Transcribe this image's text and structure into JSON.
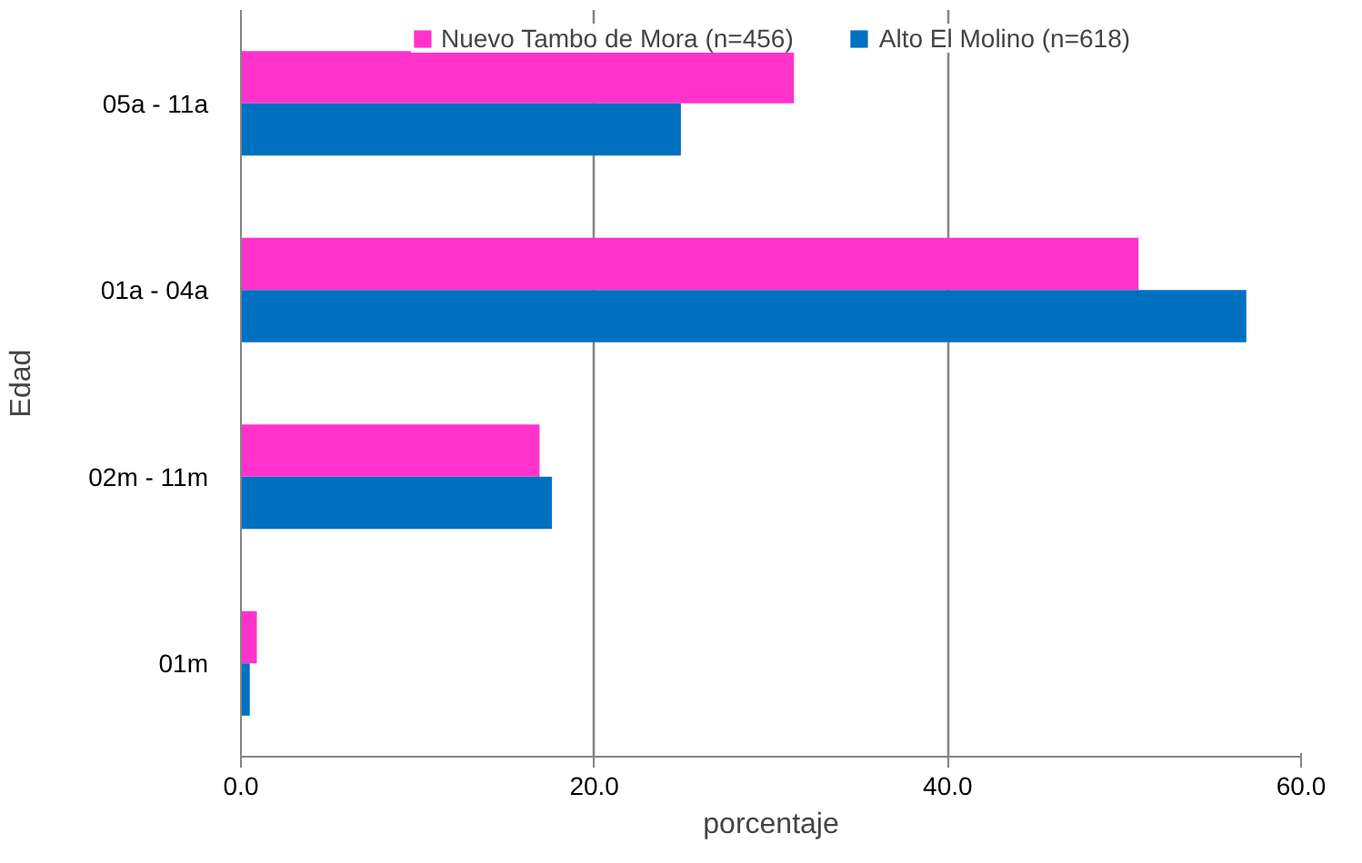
{
  "chart_data": {
    "type": "bar",
    "orientation": "horizontal",
    "xlabel": "porcentaje",
    "ylabel": "Edad",
    "categories": [
      "05a - 11a",
      "01a - 04a",
      "02m - 11m",
      "01m"
    ],
    "series": [
      {
        "name": "Nuevo Tambo de Mora (n=456)",
        "color": "#ff33cc",
        "values": [
          31.3,
          50.8,
          16.9,
          0.9
        ]
      },
      {
        "name": "Alto El Molino (n=618)",
        "color": "#0070c0",
        "values": [
          24.9,
          56.9,
          17.6,
          0.5
        ]
      }
    ],
    "xlim": [
      0,
      60
    ],
    "xticks": [
      {
        "value": 0,
        "label": "0.0"
      },
      {
        "value": 20,
        "label": "20.0"
      },
      {
        "value": 40,
        "label": "40.0"
      },
      {
        "value": 60,
        "label": "60.0"
      }
    ],
    "grid": "x",
    "legend": "top"
  }
}
